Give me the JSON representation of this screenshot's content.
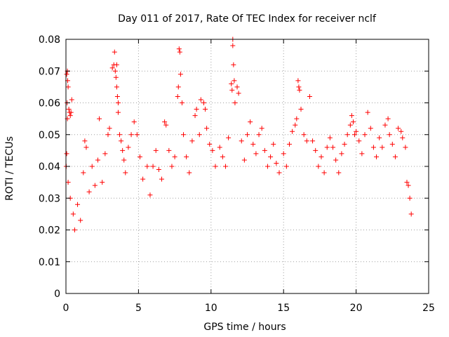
{
  "chart_data": {
    "type": "scatter",
    "title": "Day 011 of 2017, Rate Of TEC Index for receiver nclf",
    "xlabel": "GPS time / hours",
    "ylabel": "ROTI / TECUs",
    "xlim": [
      0,
      25
    ],
    "ylim": [
      0,
      0.08
    ],
    "x_ticks": [
      0,
      5,
      10,
      15,
      20,
      25
    ],
    "y_ticks": [
      0,
      0.01,
      0.02,
      0.03,
      0.04,
      0.05,
      0.06,
      0.07,
      0.08
    ],
    "x_tick_labels": [
      "0",
      "5",
      "10",
      "15",
      "20",
      "25"
    ],
    "y_tick_labels": [
      "0",
      "0.01",
      "0.02",
      "0.03",
      "0.04",
      "0.05",
      "0.06",
      "0.07",
      "0.08"
    ],
    "grid": true,
    "marker": "plus",
    "color": "#ff0000",
    "series": [
      {
        "points": [
          [
            0.05,
            0.069
          ],
          [
            0.1,
            0.07
          ],
          [
            0.12,
            0.067
          ],
          [
            0.15,
            0.065
          ],
          [
            0.08,
            0.06
          ],
          [
            0.2,
            0.058
          ],
          [
            0.25,
            0.057
          ],
          [
            0.3,
            0.056
          ],
          [
            0.35,
            0.057
          ],
          [
            0.4,
            0.061
          ],
          [
            0.1,
            0.055
          ],
          [
            0.05,
            0.044
          ],
          [
            0.02,
            0.04
          ],
          [
            0.15,
            0.035
          ],
          [
            0.3,
            0.03
          ],
          [
            0.5,
            0.025
          ],
          [
            0.6,
            0.02
          ],
          [
            0.8,
            0.028
          ],
          [
            1.0,
            0.023
          ],
          [
            1.2,
            0.038
          ],
          [
            1.3,
            0.048
          ],
          [
            1.4,
            0.046
          ],
          [
            1.6,
            0.032
          ],
          [
            1.8,
            0.04
          ],
          [
            2.0,
            0.034
          ],
          [
            2.2,
            0.042
          ],
          [
            2.3,
            0.055
          ],
          [
            2.5,
            0.035
          ],
          [
            2.7,
            0.044
          ],
          [
            2.9,
            0.05
          ],
          [
            3.0,
            0.052
          ],
          [
            3.2,
            0.071
          ],
          [
            3.3,
            0.072
          ],
          [
            3.35,
            0.076
          ],
          [
            3.4,
            0.07
          ],
          [
            3.45,
            0.068
          ],
          [
            3.5,
            0.072
          ],
          [
            3.5,
            0.065
          ],
          [
            3.55,
            0.062
          ],
          [
            3.6,
            0.06
          ],
          [
            3.6,
            0.057
          ],
          [
            3.7,
            0.05
          ],
          [
            3.8,
            0.048
          ],
          [
            3.9,
            0.045
          ],
          [
            4.0,
            0.042
          ],
          [
            4.1,
            0.038
          ],
          [
            4.3,
            0.046
          ],
          [
            4.5,
            0.05
          ],
          [
            4.7,
            0.054
          ],
          [
            4.9,
            0.05
          ],
          [
            5.1,
            0.043
          ],
          [
            5.3,
            0.036
          ],
          [
            5.6,
            0.04
          ],
          [
            5.8,
            0.031
          ],
          [
            6.0,
            0.04
          ],
          [
            6.2,
            0.045
          ],
          [
            6.4,
            0.039
          ],
          [
            6.6,
            0.036
          ],
          [
            6.8,
            0.054
          ],
          [
            6.9,
            0.053
          ],
          [
            7.1,
            0.045
          ],
          [
            7.3,
            0.04
          ],
          [
            7.5,
            0.043
          ],
          [
            7.7,
            0.062
          ],
          [
            7.75,
            0.065
          ],
          [
            7.8,
            0.077
          ],
          [
            7.85,
            0.076
          ],
          [
            7.9,
            0.069
          ],
          [
            8.0,
            0.06
          ],
          [
            8.1,
            0.05
          ],
          [
            8.3,
            0.043
          ],
          [
            8.5,
            0.038
          ],
          [
            8.7,
            0.048
          ],
          [
            8.9,
            0.056
          ],
          [
            9.0,
            0.058
          ],
          [
            9.2,
            0.05
          ],
          [
            9.3,
            0.061
          ],
          [
            9.5,
            0.06
          ],
          [
            9.6,
            0.058
          ],
          [
            9.7,
            0.052
          ],
          [
            9.9,
            0.047
          ],
          [
            10.1,
            0.045
          ],
          [
            10.3,
            0.04
          ],
          [
            10.6,
            0.046
          ],
          [
            10.8,
            0.043
          ],
          [
            11.0,
            0.04
          ],
          [
            11.2,
            0.049
          ],
          [
            11.4,
            0.066
          ],
          [
            11.45,
            0.064
          ],
          [
            11.5,
            0.08
          ],
          [
            11.5,
            0.078
          ],
          [
            11.55,
            0.072
          ],
          [
            11.6,
            0.067
          ],
          [
            11.65,
            0.06
          ],
          [
            11.8,
            0.065
          ],
          [
            11.9,
            0.063
          ],
          [
            12.1,
            0.048
          ],
          [
            12.3,
            0.042
          ],
          [
            12.5,
            0.05
          ],
          [
            12.7,
            0.054
          ],
          [
            12.9,
            0.047
          ],
          [
            13.1,
            0.044
          ],
          [
            13.3,
            0.05
          ],
          [
            13.5,
            0.052
          ],
          [
            13.7,
            0.045
          ],
          [
            13.9,
            0.04
          ],
          [
            14.1,
            0.043
          ],
          [
            14.3,
            0.047
          ],
          [
            14.5,
            0.041
          ],
          [
            14.7,
            0.038
          ],
          [
            15.0,
            0.044
          ],
          [
            15.2,
            0.04
          ],
          [
            15.4,
            0.047
          ],
          [
            15.6,
            0.051
          ],
          [
            15.8,
            0.053
          ],
          [
            15.9,
            0.055
          ],
          [
            16.0,
            0.067
          ],
          [
            16.05,
            0.065
          ],
          [
            16.1,
            0.064
          ],
          [
            16.2,
            0.058
          ],
          [
            16.4,
            0.05
          ],
          [
            16.6,
            0.048
          ],
          [
            16.8,
            0.062
          ],
          [
            17.0,
            0.048
          ],
          [
            17.2,
            0.045
          ],
          [
            17.4,
            0.04
          ],
          [
            17.6,
            0.043
          ],
          [
            17.8,
            0.038
          ],
          [
            18.0,
            0.046
          ],
          [
            18.2,
            0.049
          ],
          [
            18.4,
            0.046
          ],
          [
            18.6,
            0.042
          ],
          [
            18.8,
            0.038
          ],
          [
            19.0,
            0.044
          ],
          [
            19.2,
            0.047
          ],
          [
            19.4,
            0.05
          ],
          [
            19.6,
            0.053
          ],
          [
            19.7,
            0.056
          ],
          [
            19.8,
            0.054
          ],
          [
            19.9,
            0.05
          ],
          [
            20.0,
            0.051
          ],
          [
            20.2,
            0.048
          ],
          [
            20.4,
            0.044
          ],
          [
            20.6,
            0.05
          ],
          [
            20.8,
            0.057
          ],
          [
            21.0,
            0.052
          ],
          [
            21.2,
            0.046
          ],
          [
            21.4,
            0.043
          ],
          [
            21.6,
            0.049
          ],
          [
            21.8,
            0.046
          ],
          [
            22.0,
            0.053
          ],
          [
            22.2,
            0.055
          ],
          [
            22.3,
            0.05
          ],
          [
            22.5,
            0.047
          ],
          [
            22.7,
            0.043
          ],
          [
            22.9,
            0.052
          ],
          [
            23.1,
            0.051
          ],
          [
            23.2,
            0.049
          ],
          [
            23.4,
            0.046
          ],
          [
            23.5,
            0.035
          ],
          [
            23.6,
            0.034
          ],
          [
            23.7,
            0.03
          ],
          [
            23.8,
            0.025
          ]
        ]
      }
    ]
  }
}
